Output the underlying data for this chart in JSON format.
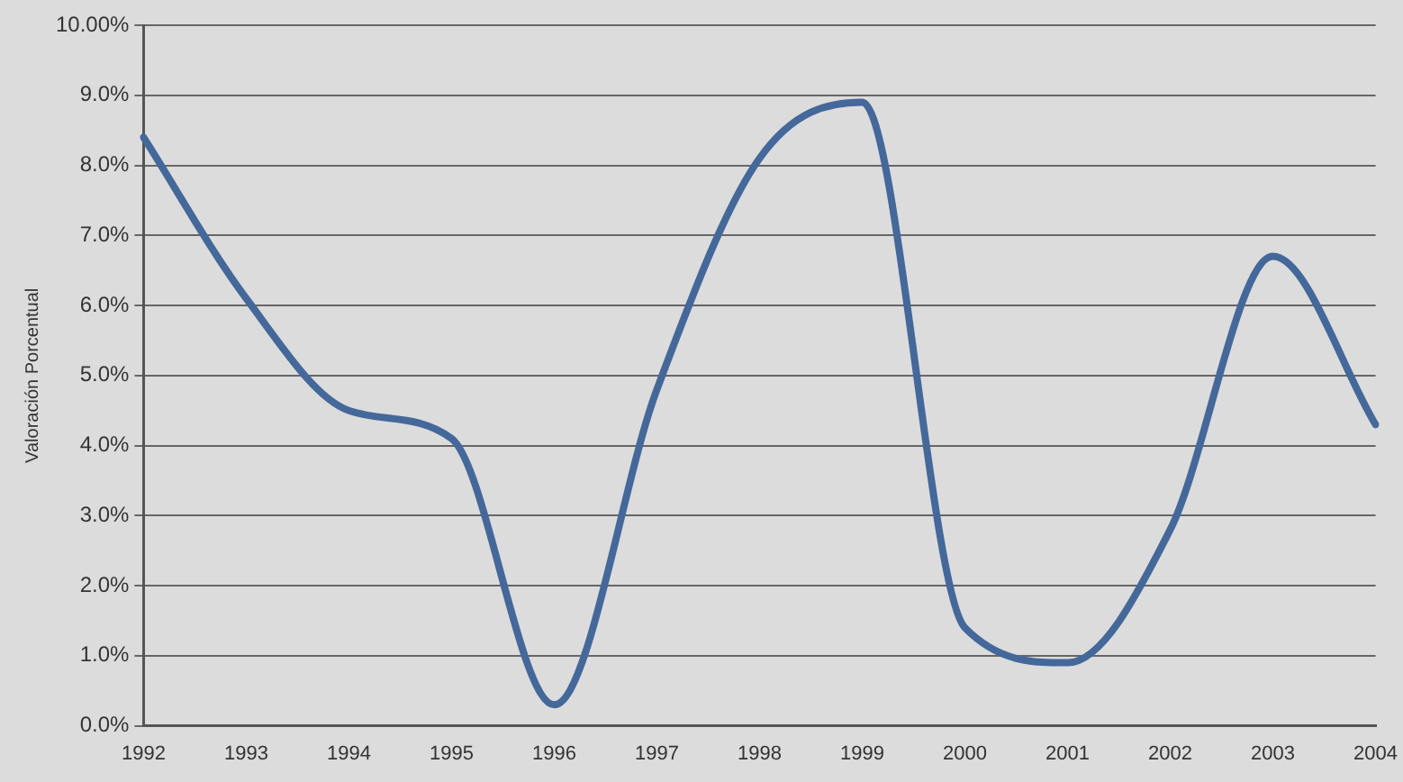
{
  "chart_data": {
    "type": "line",
    "ylabel": "Valoración Porcentual",
    "categories": [
      "1992",
      "1993",
      "1994",
      "1995",
      "1996",
      "1997",
      "1998",
      "1999",
      "2000",
      "2001",
      "2002",
      "2003",
      "2004"
    ],
    "series": [
      {
        "color": "#44689a",
        "values": [
          8.4,
          6.1,
          4.5,
          4.1,
          0.3,
          4.8,
          8.1,
          8.9,
          1.4,
          0.9,
          2.8,
          6.7,
          4.3
        ]
      }
    ],
    "ylim": [
      0,
      10
    ],
    "yticks": [
      {
        "value": 0,
        "label": "0.0%"
      },
      {
        "value": 1,
        "label": "1.0%"
      },
      {
        "value": 2,
        "label": "2.0%"
      },
      {
        "value": 3,
        "label": "3.0%"
      },
      {
        "value": 4,
        "label": "4.0%"
      },
      {
        "value": 5,
        "label": "5.0%"
      },
      {
        "value": 6,
        "label": "6.0%"
      },
      {
        "value": 7,
        "label": "7.0%"
      },
      {
        "value": 8,
        "label": "8.0%"
      },
      {
        "value": 9,
        "label": "9.0%"
      },
      {
        "value": 10,
        "label": "10.00%"
      }
    ],
    "grid": "y",
    "legend": false,
    "marker": "none",
    "line_style": "solid"
  }
}
